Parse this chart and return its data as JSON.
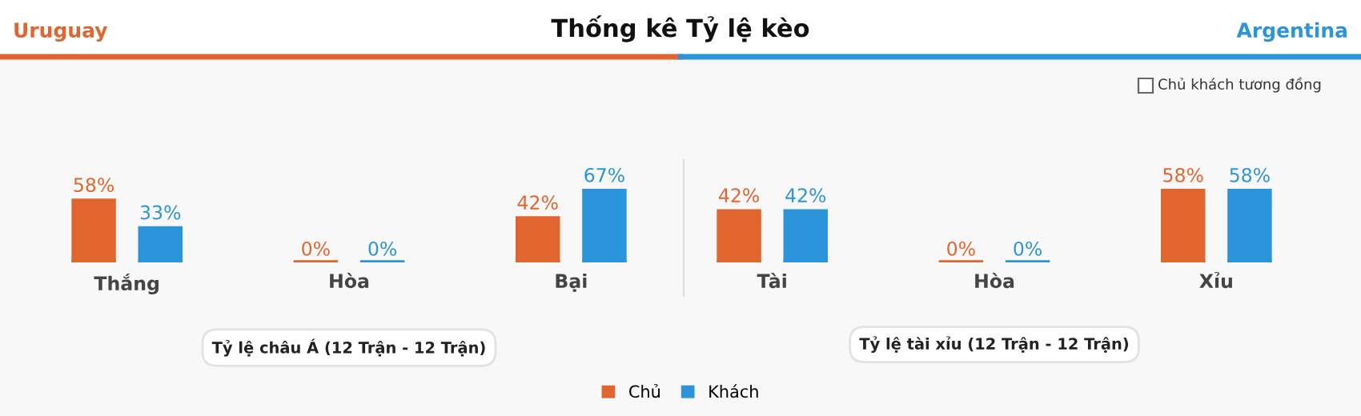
{
  "chart_data": [
    {
      "type": "bar",
      "title": "Thống kê Tỷ lệ kèo",
      "xlabel": "Tỷ lệ châu Á (12 Trận - 12 Trận)",
      "categories": [
        "Thắng",
        "Hòa",
        "Bại"
      ],
      "series": [
        {
          "name": "Chủ",
          "color": "#e0652f",
          "values": [
            58,
            0,
            42
          ],
          "value_labels": [
            "58%",
            "0%",
            "42%"
          ]
        },
        {
          "name": "Khách",
          "color": "#2b94db",
          "values": [
            33,
            0,
            67
          ],
          "value_labels": [
            "33%",
            "0%",
            "67%"
          ]
        }
      ],
      "legend": "bottom",
      "grid": false,
      "annotations": [
        "Uruguay",
        "Argentina",
        "Chủ khách tương đồng"
      ]
    },
    {
      "type": "bar",
      "xlabel": "Tỷ lệ tài xỉu (12 Trận - 12 Trận)",
      "categories": [
        "Tài",
        "Hòa",
        "Xỉu"
      ],
      "series": [
        {
          "color": "#e0652f",
          "values": [
            42,
            0,
            58
          ],
          "value_labels": [
            "42%",
            "0%",
            "58%"
          ]
        },
        {
          "color": "#2b94db",
          "values": [
            42,
            0,
            58
          ],
          "value_labels": [
            "42%",
            "0%",
            "58%"
          ]
        }
      ],
      "grid": false
    }
  ]
}
